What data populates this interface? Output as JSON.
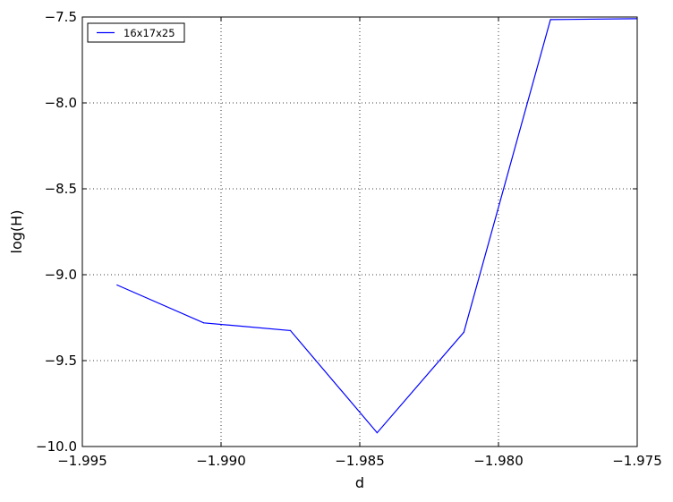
{
  "chart_data": {
    "type": "line",
    "xlabel": "d",
    "ylabel": "log(H)",
    "xlim": [
      -1.995,
      -1.975
    ],
    "ylim": [
      -10.0,
      -7.5
    ],
    "xticks": [
      -1.995,
      -1.99,
      -1.985,
      -1.98,
      -1.975
    ],
    "xtick_labels": [
      "−1.995",
      "−1.990",
      "−1.985",
      "−1.980",
      "−1.975"
    ],
    "yticks": [
      -10.0,
      -9.5,
      -9.0,
      -8.5,
      -8.0,
      -7.5
    ],
    "ytick_labels": [
      "−10.0",
      "−9.5",
      "−9.0",
      "−8.5",
      "−8.0",
      "−7.5"
    ],
    "grid": true,
    "legend_position": "top-left",
    "series": [
      {
        "name": "16x17x25",
        "color": "#0000ff",
        "x": [
          -1.99375,
          -1.990625,
          -1.9875,
          -1.984375,
          -1.98125,
          -1.978125,
          -1.975
        ],
        "y": [
          -9.06,
          -9.28,
          -9.325,
          -9.92,
          -9.335,
          -7.515,
          -7.51
        ]
      }
    ]
  }
}
